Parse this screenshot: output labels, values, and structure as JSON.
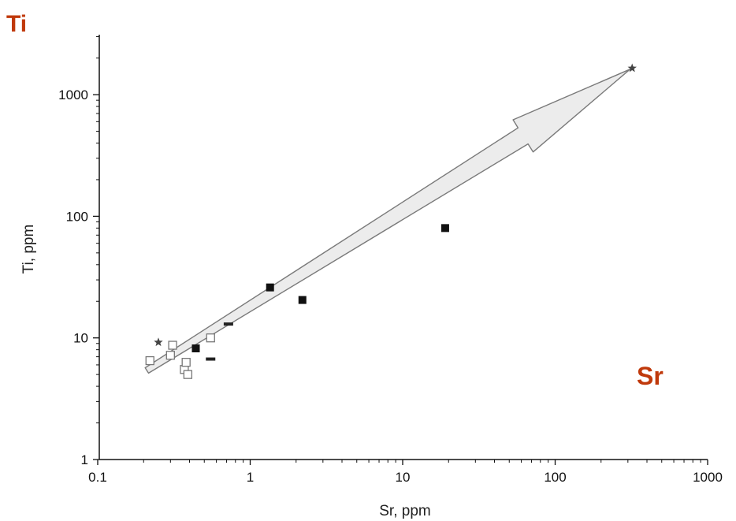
{
  "overlay_labels": {
    "top_left": "Ti",
    "right": "Sr"
  },
  "colors": {
    "accent": "#c0390b",
    "arrow_fill": "#ececec",
    "arrow_stroke": "#7a7a7a"
  },
  "chart_data": {
    "type": "scatter",
    "xscale": "log",
    "yscale": "log",
    "xlim": [
      0.1,
      1000
    ],
    "ylim": [
      1,
      3000
    ],
    "xlabel": "Sr, ppm",
    "ylabel": "Ti, ppm",
    "x_ticks": [
      "0.1",
      "1",
      "10",
      "100",
      "1000"
    ],
    "y_ticks": [
      "1",
      "10",
      "100",
      "1000"
    ],
    "grid": false,
    "trend_arrow": {
      "from": [
        0.21,
        5.4
      ],
      "to": [
        310,
        1620
      ]
    },
    "series": [
      {
        "marker": "filled-square",
        "points": [
          [
            0.44,
            8.2
          ],
          [
            1.35,
            26
          ],
          [
            2.2,
            20.5
          ],
          [
            19,
            80
          ]
        ]
      },
      {
        "marker": "open-square",
        "points": [
          [
            0.22,
            6.5
          ],
          [
            0.3,
            7.2
          ],
          [
            0.31,
            8.7
          ],
          [
            0.37,
            5.5
          ],
          [
            0.38,
            6.3
          ],
          [
            0.39,
            5.0
          ],
          [
            0.55,
            10
          ]
        ]
      },
      {
        "marker": "dash",
        "points": [
          [
            0.55,
            6.7
          ],
          [
            0.72,
            13
          ]
        ]
      },
      {
        "marker": "star",
        "points": [
          [
            0.25,
            9.2
          ],
          [
            320,
            1650
          ]
        ]
      }
    ]
  }
}
